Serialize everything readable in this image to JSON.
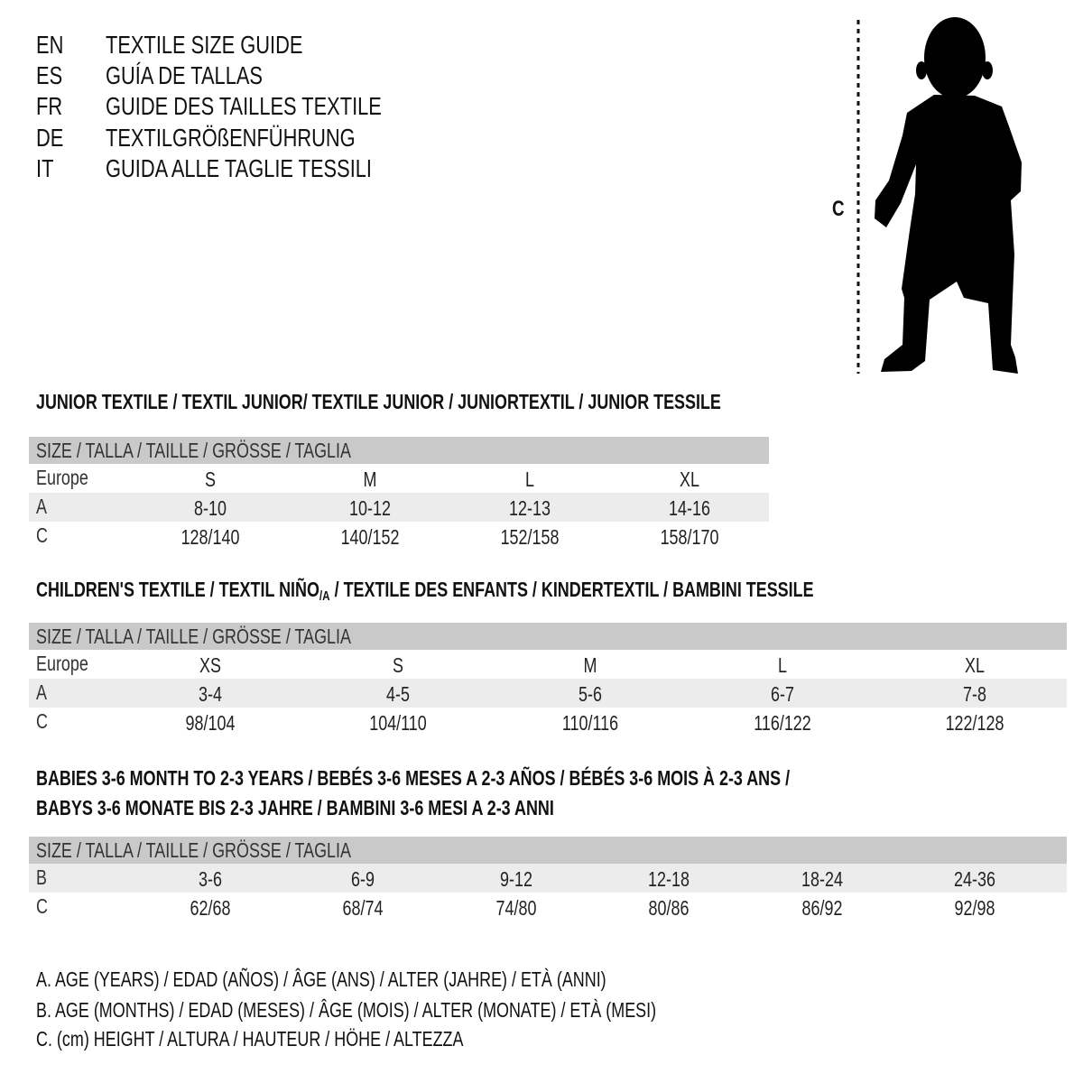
{
  "languages": [
    {
      "code": "EN",
      "title": "TEXTILE SIZE GUIDE"
    },
    {
      "code": "ES",
      "title": "GUÍA DE TALLAS"
    },
    {
      "code": "FR",
      "title": "GUIDE DES TAILLES TEXTILE"
    },
    {
      "code": "DE",
      "title": "TEXTILGRÖßENFÜHRUNG"
    },
    {
      "code": "IT",
      "title": "GUIDA ALLE TAGLIE TESSILI"
    }
  ],
  "figure": {
    "measure_label": "C",
    "icon": "child-silhouette"
  },
  "colors": {
    "header_bg": "#c9c9c9",
    "alt_row_bg": "#ececec"
  },
  "sections": [
    {
      "title": "JUNIOR TEXTILE / TEXTIL JUNIOR/ TEXTILE JUNIOR / JUNIORTEXTIL / JUNIOR TESSILE",
      "header": "SIZE / TALLA / TAILLE / GRÖSSE / TAGLIA",
      "rows": [
        {
          "label": "Europe",
          "values": [
            "S",
            "M",
            "L",
            "XL"
          ]
        },
        {
          "label": "A",
          "values": [
            "8-10",
            "10-12",
            "12-13",
            "14-16"
          ]
        },
        {
          "label": "C",
          "values": [
            "128/140",
            "140/152",
            "152/158",
            "158/170"
          ]
        }
      ]
    },
    {
      "title_pre": "CHILDREN'S TEXTILE / TEXTIL NIÑO",
      "title_sub": "/A",
      "title_post": " / TEXTILE DES ENFANTS / KINDERTEXTIL / BAMBINI TESSILE",
      "header": "SIZE / TALLA / TAILLE / GRÖSSE / TAGLIA",
      "rows": [
        {
          "label": "Europe",
          "values": [
            "XS",
            "S",
            "M",
            "L",
            "XL"
          ]
        },
        {
          "label": "A",
          "values": [
            "3-4",
            "4-5",
            "5-6",
            "6-7",
            "7-8"
          ]
        },
        {
          "label": "C",
          "values": [
            "98/104",
            "104/110",
            "110/116",
            "116/122",
            "122/128"
          ]
        }
      ]
    },
    {
      "title": "BABIES 3-6 MONTH TO 2-3 YEARS / BEBÉS 3-6 MESES A 2-3 AÑOS / BÉBÉS 3-6 MOIS À 2-3 ANS /",
      "title2": "BABYS 3-6 MONATE BIS 2-3 JAHRE / BAMBINI 3-6 MESI A 2-3 ANNI",
      "header": "SIZE / TALLA / TAILLE / GRÖSSE / TAGLIA",
      "rows": [
        {
          "label": "B",
          "values": [
            "3-6",
            "6-9",
            "9-12",
            "12-18",
            "18-24",
            "24-36"
          ]
        },
        {
          "label": "C",
          "values": [
            "62/68",
            "68/74",
            "74/80",
            "80/86",
            "86/92",
            "92/98"
          ]
        }
      ]
    }
  ],
  "legend": [
    "A. AGE (YEARS) / EDAD (AÑOS) / ÂGE (ANS) / ALTER (JAHRE) / ETÀ (ANNI)",
    "B. AGE (MONTHS) / EDAD (MESES) / ÂGE (MOIS) / ALTER (MONATE) / ETÀ (MESI)",
    "C. (cm) HEIGHT / ALTURA / HAUTEUR / HÖHE / ALTEZZA"
  ]
}
